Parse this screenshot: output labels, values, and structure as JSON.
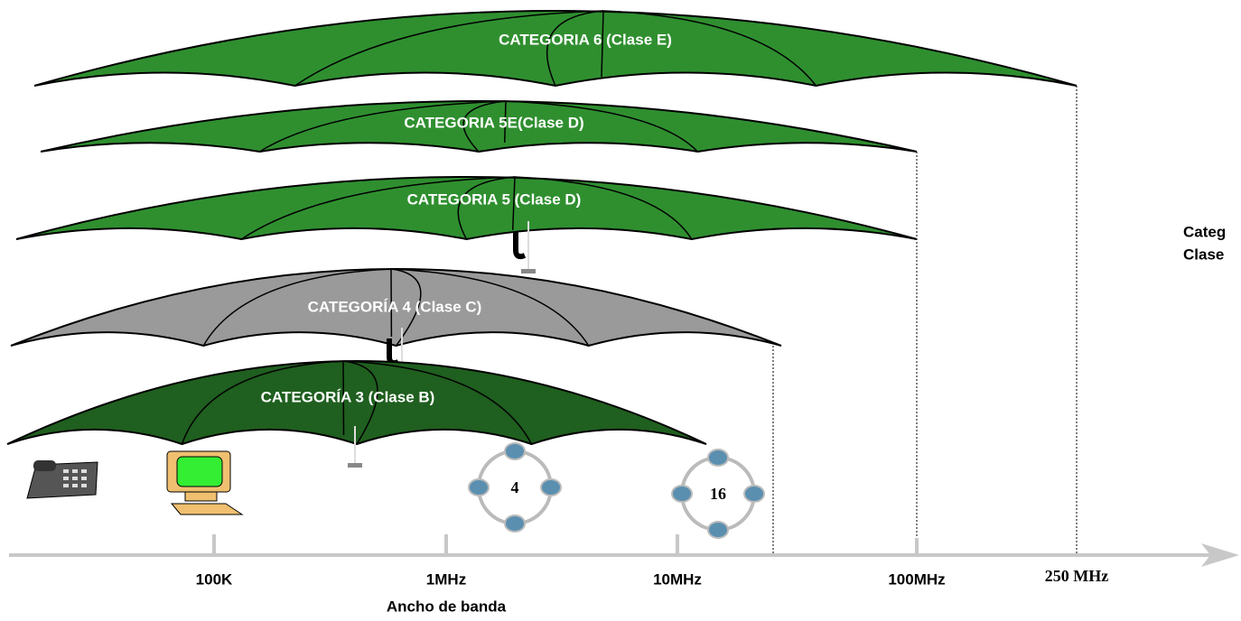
{
  "umbrellas": [
    {
      "label": "CATEGORIA 6 (Clase E)"
    },
    {
      "label": "CATEGORIA 5E(Clase D)"
    },
    {
      "label": "CATEGORIA 5 (Clase D)"
    },
    {
      "label": "CATEGORÍA 4 (Clase C)"
    },
    {
      "label": "CATEGORÍA 3 (Clase B)"
    }
  ],
  "rings": [
    {
      "label": "4"
    },
    {
      "label": "16"
    }
  ],
  "axis": {
    "ticks": [
      "100K",
      "1MHz",
      "10MHz",
      "100MHz",
      "250 MHz"
    ],
    "title": "Ancho de banda"
  },
  "side_note": [
    "Categ",
    "Clase"
  ]
}
